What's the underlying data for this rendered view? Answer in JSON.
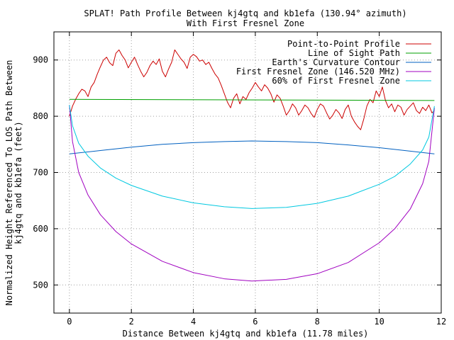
{
  "chart_data": {
    "type": "line",
    "title": "SPLAT! Path Profile Between kj4gtq and kb1efa (130.94° azimuth)",
    "subtitle": "With First Fresnel Zone",
    "xlabel": "Distance Between kj4gtq and kb1efa (11.78 miles)",
    "ylabel_lines": [
      "Normalized Height Referenced To LOS Path Between",
      "kj4gtq and kb1efa (feet)"
    ],
    "xlim": [
      -0.5,
      12
    ],
    "ylim": [
      450,
      950
    ],
    "xticks": [
      0,
      2,
      4,
      6,
      8,
      10,
      12
    ],
    "xtick_labels": [
      "0",
      "2",
      "4",
      "6",
      "8",
      "10",
      "12"
    ],
    "yticks": [
      500,
      600,
      700,
      800,
      900
    ],
    "ytick_labels": [
      "500",
      "600",
      "700",
      "800",
      "900"
    ],
    "grid": true,
    "legend_position": "top-right",
    "series": [
      {
        "name": "Point-to-Point Profile",
        "color": "#cc0000",
        "x": [
          0,
          0.1,
          0.2,
          0.3,
          0.4,
          0.5,
          0.6,
          0.7,
          0.8,
          0.9,
          1.0,
          1.1,
          1.2,
          1.3,
          1.4,
          1.5,
          1.6,
          1.7,
          1.8,
          1.9,
          2.0,
          2.1,
          2.2,
          2.3,
          2.4,
          2.5,
          2.6,
          2.7,
          2.8,
          2.9,
          3.0,
          3.1,
          3.2,
          3.3,
          3.4,
          3.5,
          3.6,
          3.7,
          3.8,
          3.9,
          4.0,
          4.1,
          4.2,
          4.3,
          4.4,
          4.5,
          4.6,
          4.7,
          4.8,
          4.9,
          5.0,
          5.1,
          5.2,
          5.3,
          5.4,
          5.5,
          5.6,
          5.7,
          5.8,
          5.9,
          6.0,
          6.1,
          6.2,
          6.3,
          6.4,
          6.5,
          6.6,
          6.7,
          6.8,
          6.9,
          7.0,
          7.1,
          7.2,
          7.3,
          7.4,
          7.5,
          7.6,
          7.7,
          7.8,
          7.9,
          8.0,
          8.1,
          8.2,
          8.3,
          8.4,
          8.5,
          8.6,
          8.7,
          8.8,
          8.9,
          9.0,
          9.1,
          9.2,
          9.3,
          9.4,
          9.5,
          9.6,
          9.7,
          9.8,
          9.9,
          10.0,
          10.1,
          10.2,
          10.3,
          10.4,
          10.5,
          10.6,
          10.7,
          10.8,
          10.9,
          11.0,
          11.1,
          11.2,
          11.3,
          11.4,
          11.5,
          11.6,
          11.7,
          11.78
        ],
        "y": [
          800,
          818,
          830,
          840,
          848,
          845,
          835,
          852,
          860,
          875,
          888,
          900,
          905,
          895,
          890,
          912,
          918,
          908,
          900,
          886,
          896,
          905,
          892,
          880,
          870,
          878,
          890,
          898,
          892,
          902,
          880,
          870,
          884,
          896,
          918,
          910,
          902,
          896,
          885,
          905,
          910,
          906,
          898,
          900,
          892,
          896,
          885,
          875,
          868,
          855,
          840,
          825,
          815,
          832,
          840,
          822,
          835,
          830,
          842,
          850,
          860,
          852,
          845,
          856,
          850,
          840,
          825,
          838,
          832,
          818,
          802,
          810,
          822,
          815,
          802,
          810,
          820,
          815,
          805,
          798,
          812,
          822,
          818,
          806,
          795,
          802,
          812,
          806,
          796,
          812,
          820,
          800,
          790,
          782,
          776,
          795,
          818,
          830,
          824,
          845,
          835,
          852,
          828,
          815,
          822,
          808,
          820,
          816,
          802,
          812,
          818,
          824,
          810,
          805,
          816,
          810,
          820,
          806,
          810
        ]
      },
      {
        "name": "Line of Sight Path",
        "color": "#00a000",
        "x": [
          0,
          11.78
        ],
        "y": [
          830,
          828
        ]
      },
      {
        "name": "Earth's Curvature Contour",
        "color": "#0060c0",
        "x": [
          0,
          1,
          2,
          3,
          4,
          5,
          5.89,
          7,
          8,
          9,
          10,
          11,
          11.78
        ],
        "y": [
          733,
          739,
          745,
          750,
          753,
          755,
          756,
          755,
          753,
          749,
          744,
          738,
          733
        ]
      },
      {
        "name": "First Fresnel Zone (146.520 MHz)",
        "color": "#a000c0",
        "x": [
          0,
          0.1,
          0.3,
          0.6,
          1,
          1.5,
          2,
          3,
          4,
          5,
          5.89,
          7,
          8,
          9,
          10,
          10.5,
          11,
          11.4,
          11.6,
          11.78
        ],
        "y": [
          820,
          755,
          700,
          660,
          625,
          595,
          573,
          542,
          522,
          511,
          507,
          510,
          520,
          540,
          575,
          600,
          635,
          680,
          720,
          815
        ]
      },
      {
        "name": "60% of First Fresnel Zone",
        "color": "#00c8e0",
        "x": [
          0,
          0.1,
          0.3,
          0.6,
          1,
          1.5,
          2,
          3,
          4,
          5,
          5.89,
          7,
          8,
          9,
          10,
          10.5,
          11,
          11.4,
          11.6,
          11.78
        ],
        "y": [
          820,
          783,
          752,
          729,
          708,
          690,
          677,
          658,
          646,
          639,
          636,
          638,
          645,
          658,
          679,
          693,
          715,
          740,
          763,
          818
        ]
      }
    ]
  }
}
